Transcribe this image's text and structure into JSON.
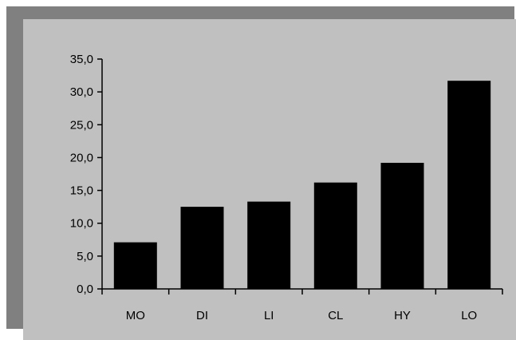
{
  "chart_data": {
    "type": "bar",
    "categories": [
      "MO",
      "DI",
      "LI",
      "CL",
      "HY",
      "LO"
    ],
    "values": [
      7.1,
      12.5,
      13.3,
      16.2,
      19.2,
      31.7
    ],
    "title": "",
    "xlabel": "",
    "ylabel": "",
    "ylim": [
      0,
      35
    ],
    "yticks": [
      "0,0",
      "5,0",
      "10,0",
      "15,0",
      "20,0",
      "25,0",
      "30,0",
      "35,0"
    ],
    "grid": false,
    "legend": "none",
    "colors": {
      "bar": "#000000",
      "panel": "#c0c0c0",
      "shadow": "#808080",
      "axis": "#000000"
    }
  }
}
